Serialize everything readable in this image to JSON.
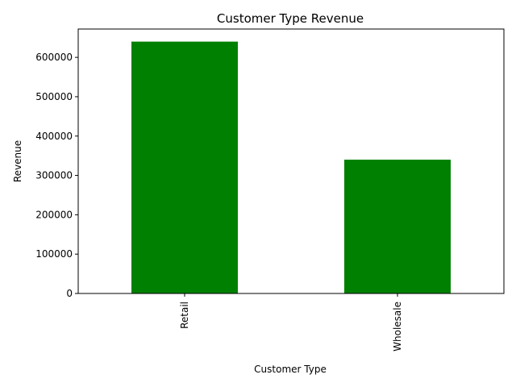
{
  "chart_data": {
    "type": "bar",
    "title": "Customer Type Revenue",
    "xlabel": "Customer Type",
    "ylabel": "Revenue",
    "categories": [
      "Retail",
      "Wholesale"
    ],
    "values": [
      640000,
      340000
    ],
    "ylim": [
      0,
      672000
    ],
    "yticks": [
      0,
      100000,
      200000,
      300000,
      400000,
      500000,
      600000
    ],
    "bar_color": "#008000",
    "grid": false,
    "legend": "none"
  }
}
